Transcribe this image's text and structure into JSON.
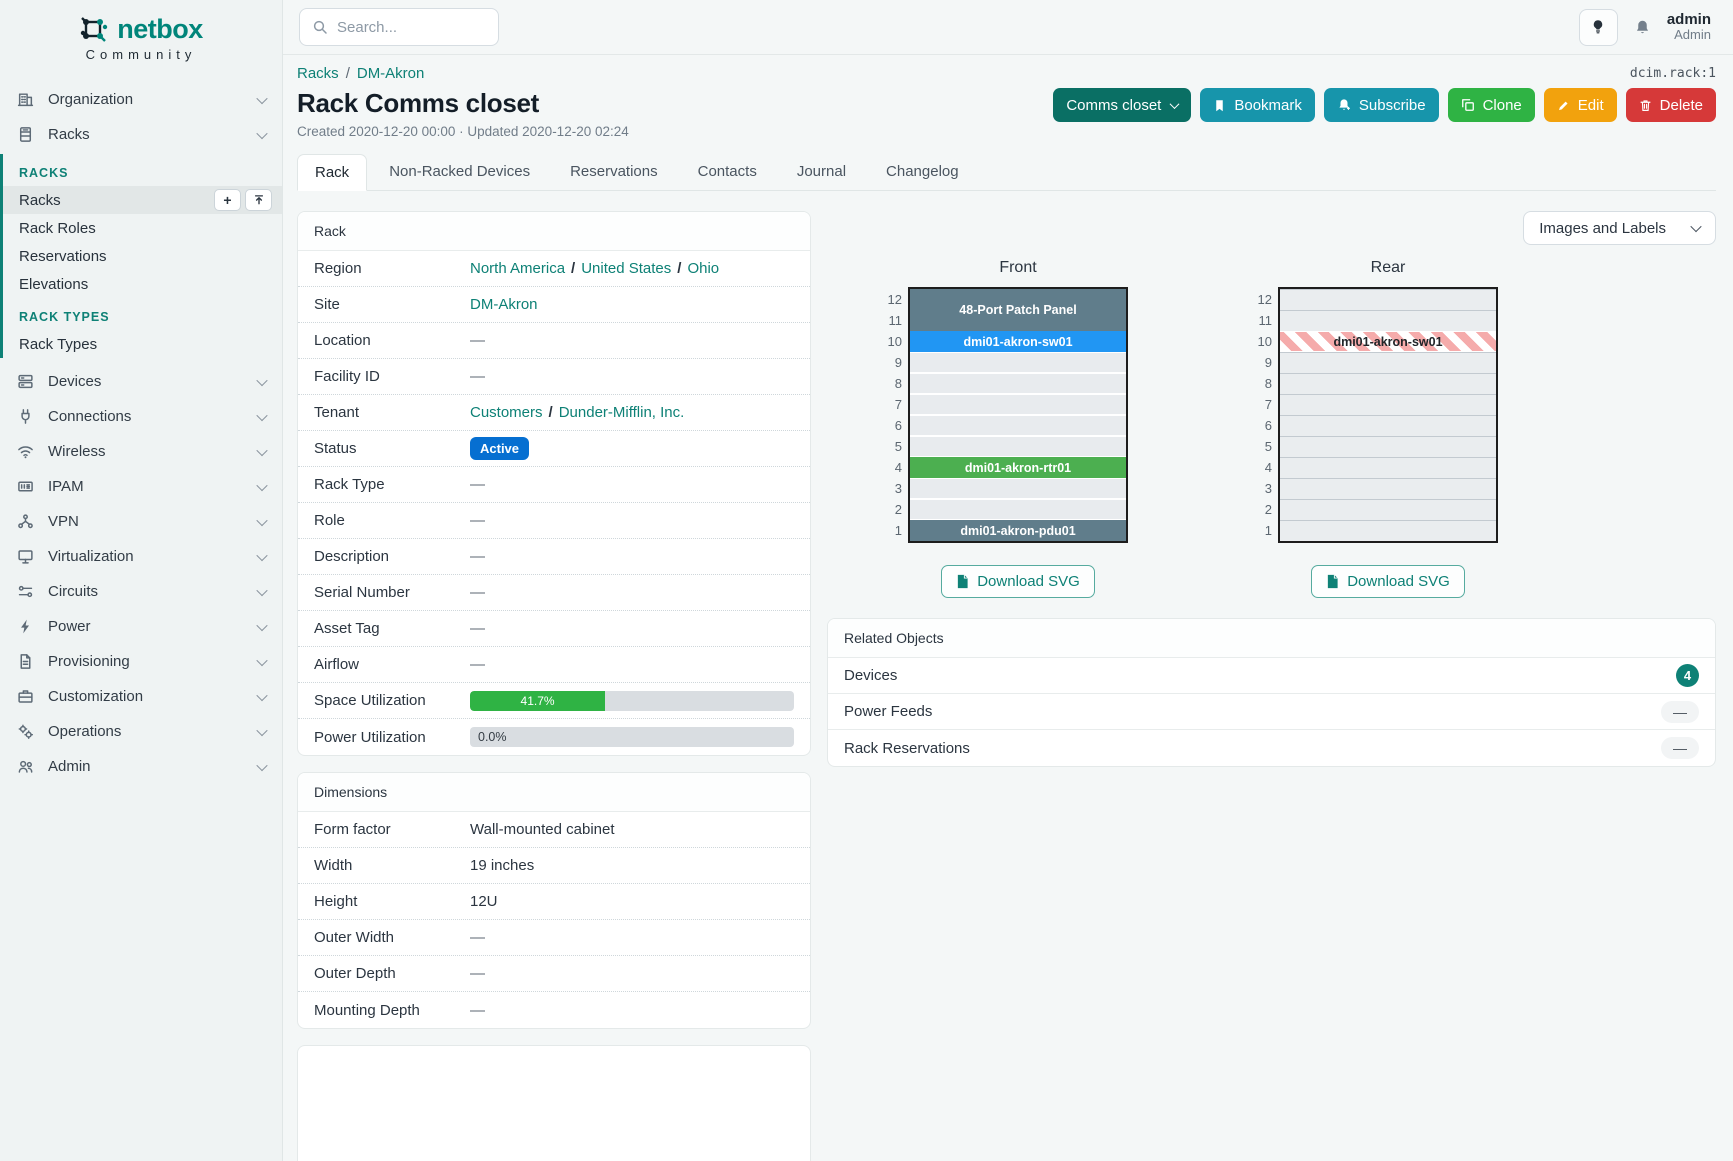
{
  "brand": {
    "name": "netbox",
    "community": "Community"
  },
  "topbar": {
    "search_placeholder": "Search...",
    "username": "admin",
    "role": "Admin"
  },
  "context_id": "dcim.rack:1",
  "dash": "—",
  "sep": "/",
  "sidebar": {
    "top_items": [
      "Organization",
      "Racks"
    ],
    "groups": [
      {
        "header": "RACKS",
        "items": [
          "Racks",
          "Rack Roles",
          "Reservations",
          "Elevations"
        ]
      },
      {
        "header": "RACK TYPES",
        "items": [
          "Rack Types"
        ]
      }
    ],
    "bottom_items": [
      "Devices",
      "Connections",
      "Wireless",
      "IPAM",
      "VPN",
      "Virtualization",
      "Circuits",
      "Power",
      "Provisioning",
      "Customization",
      "Operations",
      "Admin"
    ]
  },
  "breadcrumb": [
    "Racks",
    "DM-Akron"
  ],
  "page": {
    "title": "Rack Comms closet",
    "meta": "Created 2020-12-20 00:00 · Updated 2020-12-20 02:24",
    "actions": {
      "selector": "Comms closet",
      "bookmark": "Bookmark",
      "subscribe": "Subscribe",
      "clone": "Clone",
      "edit": "Edit",
      "delete": "Delete"
    }
  },
  "tabs": [
    "Rack",
    "Non-Racked Devices",
    "Reservations",
    "Contacts",
    "Journal",
    "Changelog"
  ],
  "rack_info": {
    "title": "Rack",
    "region": {
      "label": "Region",
      "links": [
        "North America",
        "United States",
        "Ohio"
      ]
    },
    "site": {
      "label": "Site",
      "links": [
        "DM-Akron"
      ]
    },
    "location": {
      "label": "Location",
      "value": "—"
    },
    "facility_id": {
      "label": "Facility ID",
      "value": "—"
    },
    "tenant": {
      "label": "Tenant",
      "links": [
        "Customers",
        "Dunder-Mifflin, Inc."
      ]
    },
    "status": {
      "label": "Status",
      "badge": "Active",
      "badge_color": "#066fd1"
    },
    "rack_type": {
      "label": "Rack Type",
      "value": "—"
    },
    "role": {
      "label": "Role",
      "value": "—"
    },
    "description": {
      "label": "Description",
      "value": "—"
    },
    "serial": {
      "label": "Serial Number",
      "value": "—"
    },
    "asset_tag": {
      "label": "Asset Tag",
      "value": "—"
    },
    "airflow": {
      "label": "Airflow",
      "value": "—"
    },
    "space_utilization": {
      "label": "Space Utilization",
      "percent": 41.7,
      "text": "41.7%",
      "color": "#2fb344"
    },
    "power_utilization": {
      "label": "Power Utilization",
      "percent": 0.0,
      "text": "0.0%"
    }
  },
  "dimensions": {
    "title": "Dimensions",
    "rows": [
      {
        "label": "Form factor",
        "value": "Wall-mounted cabinet"
      },
      {
        "label": "Width",
        "value": "19 inches"
      },
      {
        "label": "Height",
        "value": "12U"
      },
      {
        "label": "Outer Width",
        "value": "—"
      },
      {
        "label": "Outer Depth",
        "value": "—"
      },
      {
        "label": "Mounting Depth",
        "value": "—"
      }
    ]
  },
  "elevations": {
    "view_toggle": "Images and Labels",
    "download_label": "Download SVG",
    "unit_count": 12,
    "front": {
      "title": "Front",
      "slots": [
        {
          "span": 2,
          "label": "48-Port Patch Panel",
          "color": "#607d8b",
          "text_color": "#ffffff"
        },
        {
          "span": 1,
          "label": "dmi01-akron-sw01",
          "color": "#2196f3",
          "text_color": "#ffffff"
        },
        {
          "span": 1,
          "empty": true
        },
        {
          "span": 1,
          "empty": true
        },
        {
          "span": 1,
          "empty": true
        },
        {
          "span": 1,
          "empty": true
        },
        {
          "span": 1,
          "empty": true
        },
        {
          "span": 1,
          "label": "dmi01-akron-rtr01",
          "color": "#4caf50",
          "text_color": "#ffffff"
        },
        {
          "span": 1,
          "empty": true
        },
        {
          "span": 1,
          "empty": true
        },
        {
          "span": 1,
          "label": "dmi01-akron-pdu01",
          "color": "#607d8b",
          "text_color": "#ffffff"
        }
      ]
    },
    "rear": {
      "title": "Rear",
      "slots": [
        {
          "span": 1,
          "empty": true
        },
        {
          "span": 1,
          "empty": true
        },
        {
          "span": 1,
          "label": "dmi01-akron-sw01",
          "striped": true,
          "text_color": "#212529"
        },
        {
          "span": 1,
          "empty": true
        },
        {
          "span": 1,
          "empty": true
        },
        {
          "span": 1,
          "empty": true
        },
        {
          "span": 1,
          "empty": true
        },
        {
          "span": 1,
          "empty": true
        },
        {
          "span": 1,
          "empty": true
        },
        {
          "span": 1,
          "empty": true
        },
        {
          "span": 1,
          "empty": true
        },
        {
          "span": 1,
          "empty": true
        }
      ]
    }
  },
  "related_objects": {
    "title": "Related Objects",
    "rows": [
      {
        "label": "Devices",
        "count": "4",
        "highlight": true
      },
      {
        "label": "Power Feeds",
        "count": "—"
      },
      {
        "label": "Rack Reservations",
        "count": "—"
      }
    ]
  }
}
